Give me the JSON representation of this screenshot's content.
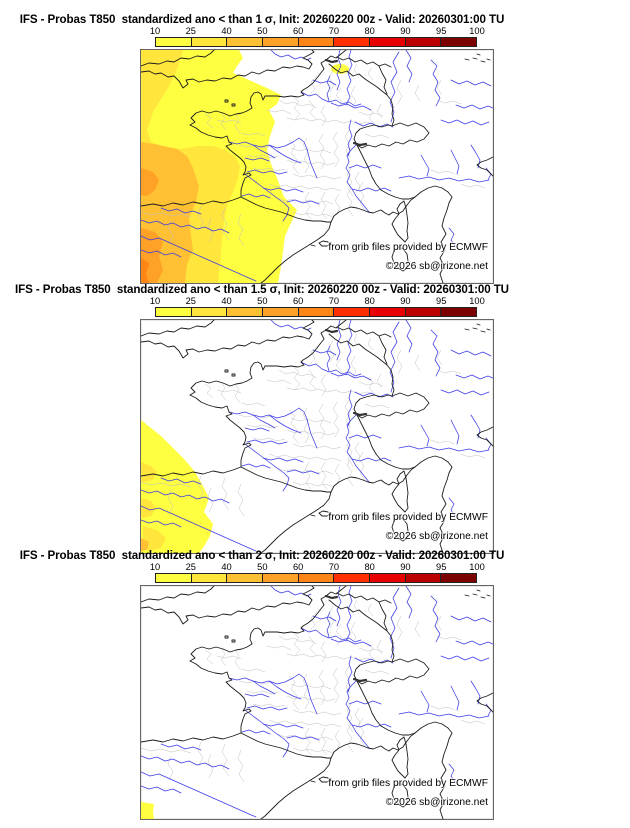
{
  "panels": [
    {
      "id": "sigma-1",
      "title": "IFS - Probas T850  standardized ano < than 1 σ, Init: 20260220 00z - Valid: 20260301:00 TU",
      "shaded_probability_ranges": [
        "10-25",
        "25-40",
        "40-50",
        "50-60",
        "60-70"
      ]
    },
    {
      "id": "sigma-1.5",
      "title": "IFS - Probas T850  standardized ano < than 1.5 σ, Init: 20260220 00z - Valid: 20260301:00 TU",
      "shaded_probability_ranges": [
        "10-25",
        "25-40",
        "40-50"
      ]
    },
    {
      "id": "sigma-2",
      "title": "IFS - Probas T850  standardized ano < than 2 σ, Init: 20260220 00z - Valid: 20260301:00 TU",
      "shaded_probability_ranges": [
        "10-25"
      ]
    }
  ],
  "colorbar": {
    "tick_labels": [
      "10",
      "25",
      "40",
      "50",
      "60",
      "70",
      "80",
      "90",
      "95",
      "100"
    ],
    "segment_colors": [
      "#ffff42",
      "#ffe53c",
      "#ffc133",
      "#ffa127",
      "#ff8517",
      "#ff2f00",
      "#e80000",
      "#bb0000",
      "#7c0202"
    ]
  },
  "attribution": {
    "source": "from grib files provided by ECMWF",
    "copyright": "©2026 sb@irizone.net"
  },
  "map_colors": {
    "coastline": "#1c1c1c",
    "rivers": "#3c3ce6",
    "departments": "#bfbfbf",
    "sea": "#ffffff"
  }
}
